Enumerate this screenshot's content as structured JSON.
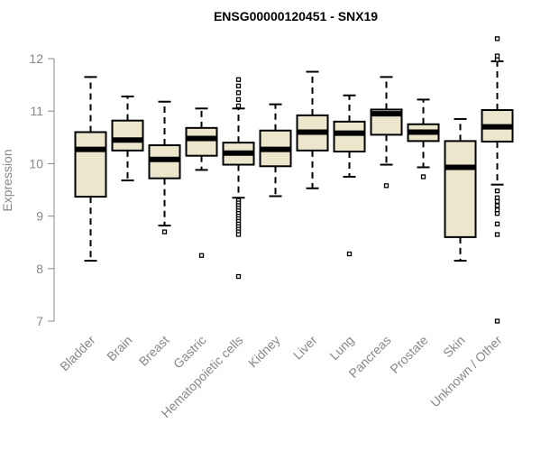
{
  "chart_data": {
    "type": "boxplot",
    "title": "ENSG00000120451 - SNX19",
    "xlabel": "",
    "ylabel": "Expression",
    "ylim": [
      7,
      12
    ],
    "yticks": [
      7,
      8,
      9,
      10,
      11,
      12
    ],
    "box_color": "#ece6cd",
    "categories": [
      "Bladder",
      "Brain",
      "Breast",
      "Gastric",
      "Hematopoietic cells",
      "Kidney",
      "Liver",
      "Lung",
      "Pancreas",
      "Prostate",
      "Skin",
      "Unknown / Other"
    ],
    "boxes": [
      {
        "name": "Bladder",
        "whisker_low": 8.15,
        "q1": 9.37,
        "median": 10.27,
        "q3": 10.6,
        "whisker_high": 11.65,
        "outliers": []
      },
      {
        "name": "Brain",
        "whisker_low": 9.68,
        "q1": 10.25,
        "median": 10.45,
        "q3": 10.82,
        "whisker_high": 11.28,
        "outliers": []
      },
      {
        "name": "Breast",
        "whisker_low": 8.82,
        "q1": 9.72,
        "median": 10.08,
        "q3": 10.35,
        "whisker_high": 11.18,
        "outliers": [
          8.7
        ]
      },
      {
        "name": "Gastric",
        "whisker_low": 9.88,
        "q1": 10.15,
        "median": 10.48,
        "q3": 10.68,
        "whisker_high": 11.05,
        "outliers": [
          8.25
        ]
      },
      {
        "name": "Hematopoietic cells",
        "whisker_low": 9.35,
        "q1": 9.98,
        "median": 10.2,
        "q3": 10.4,
        "whisker_high": 11.05,
        "outliers": [
          11.6,
          11.48,
          11.35,
          11.22,
          11.1,
          9.3,
          9.25,
          9.2,
          9.15,
          9.1,
          9.05,
          9.0,
          8.95,
          8.9,
          8.85,
          8.8,
          8.75,
          8.7,
          8.65,
          7.85
        ]
      },
      {
        "name": "Kidney",
        "whisker_low": 9.38,
        "q1": 9.95,
        "median": 10.27,
        "q3": 10.63,
        "whisker_high": 11.13,
        "outliers": []
      },
      {
        "name": "Liver",
        "whisker_low": 9.53,
        "q1": 10.25,
        "median": 10.6,
        "q3": 10.92,
        "whisker_high": 11.75,
        "outliers": []
      },
      {
        "name": "Lung",
        "whisker_low": 9.75,
        "q1": 10.23,
        "median": 10.58,
        "q3": 10.8,
        "whisker_high": 11.3,
        "outliers": [
          8.28
        ]
      },
      {
        "name": "Pancreas",
        "whisker_low": 9.98,
        "q1": 10.55,
        "median": 10.95,
        "q3": 11.03,
        "whisker_high": 11.65,
        "outliers": [
          9.58
        ]
      },
      {
        "name": "Prostate",
        "whisker_low": 9.93,
        "q1": 10.43,
        "median": 10.6,
        "q3": 10.75,
        "whisker_high": 11.22,
        "outliers": [
          9.75
        ]
      },
      {
        "name": "Skin",
        "whisker_low": 8.15,
        "q1": 8.6,
        "median": 9.93,
        "q3": 10.43,
        "whisker_high": 10.85,
        "outliers": []
      },
      {
        "name": "Unknown / Other",
        "whisker_low": 9.6,
        "q1": 10.42,
        "median": 10.7,
        "q3": 11.02,
        "whisker_high": 11.95,
        "outliers": [
          12.38,
          12.05,
          11.98,
          9.48,
          9.35,
          9.28,
          9.2,
          9.12,
          9.05,
          8.85,
          8.65,
          7.0
        ]
      }
    ]
  }
}
